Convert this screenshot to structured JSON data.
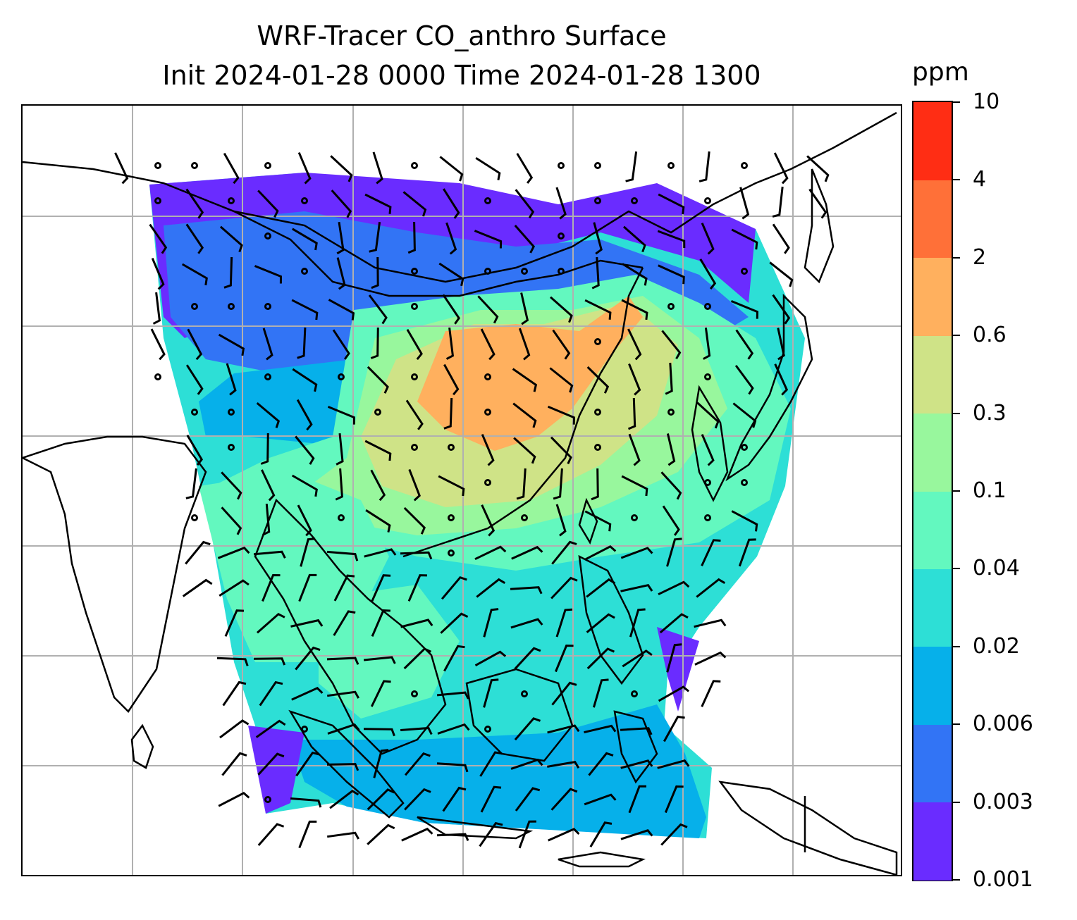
{
  "title": {
    "line1": "WRF-Tracer CO_anthro Surface",
    "line2": "Init 2024-01-28 0000 Time 2024-01-28 1300"
  },
  "colorbar": {
    "unit": "ppm",
    "ticks": [
      "0.001",
      "0.003",
      "0.006",
      "0.02",
      "0.04",
      "0.1",
      "0.3",
      "0.6",
      "2",
      "4",
      "10"
    ],
    "colors": [
      "#6a2cff",
      "#3274f5",
      "#06b0ea",
      "#2ddfd6",
      "#63f8bf",
      "#98f79d",
      "#cfe387",
      "#ffb05e",
      "#ff7038",
      "#ff2d14"
    ]
  },
  "map": {
    "land_border_color": "#000000",
    "gridline_color": "#b0b0b0",
    "wind_barb_color": "#000000",
    "gridlines": true
  }
}
